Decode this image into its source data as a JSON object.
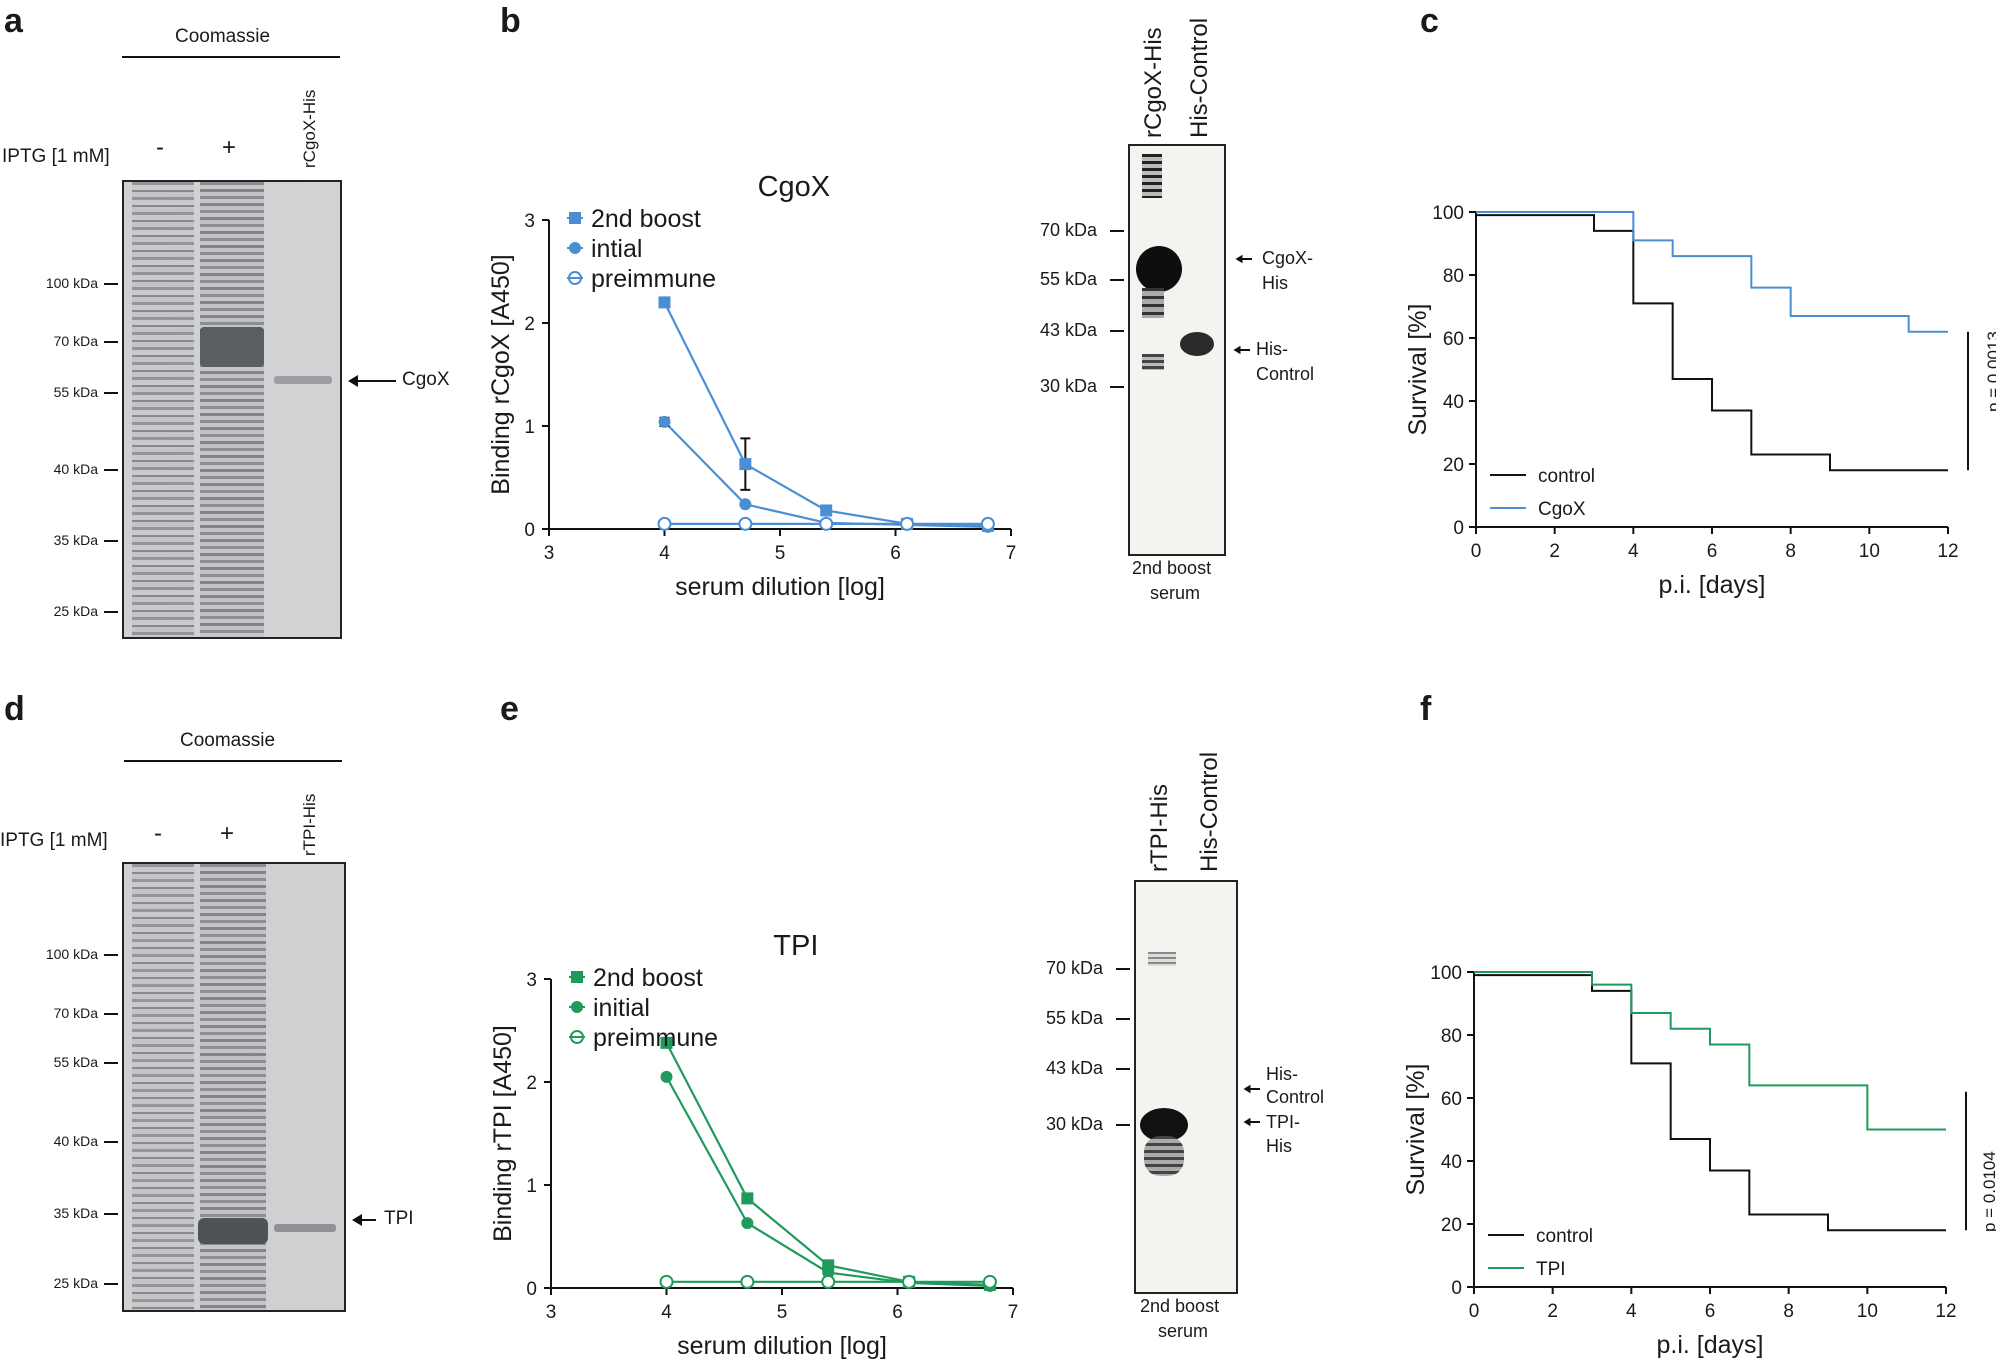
{
  "panels": {
    "a": {
      "letter": "a",
      "header": "Coomassie",
      "iptg_label": "IPTG [1 mM]",
      "minus": "-",
      "plus": "+",
      "lane_label": "rCgoX-His",
      "markers": [
        "100 kDa",
        "70 kDa",
        "55 kDa",
        "40 kDa",
        "35 kDa",
        "25 kDa"
      ],
      "band_label": "CgoX"
    },
    "b": {
      "letter": "b",
      "blot_lanes": [
        "rCgoX-His",
        "His-Control"
      ],
      "blot_markers": [
        "70 kDa",
        "55 kDa",
        "43 kDa",
        "30 kDa"
      ],
      "blot_bands": [
        "CgoX-",
        "His",
        "His-",
        "Control"
      ],
      "blot_serum": [
        "2nd boost",
        "serum"
      ]
    },
    "c": {
      "letter": "c",
      "pvalue": "p = 0.0013"
    },
    "d": {
      "letter": "d",
      "header": "Coomassie",
      "iptg_label": "IPTG [1 mM]",
      "minus": "-",
      "plus": "+",
      "lane_label": "rTPI-His",
      "markers": [
        "100 kDa",
        "70 kDa",
        "55 kDa",
        "40 kDa",
        "35 kDa",
        "25 kDa"
      ],
      "band_label": "TPI"
    },
    "e": {
      "letter": "e",
      "blot_lanes": [
        "rTPI-His",
        "His-Control"
      ],
      "blot_markers": [
        "70 kDa",
        "55 kDa",
        "43 kDa",
        "30 kDa"
      ],
      "blot_bands": [
        "His-",
        "Control",
        "TPI-",
        "His"
      ],
      "blot_serum": [
        "2nd boost",
        "serum"
      ]
    },
    "f": {
      "letter": "f",
      "pvalue": "p = 0.0104"
    }
  },
  "colors": {
    "blue": "#4a8fd4",
    "green": "#1f9a5c",
    "black": "#111111"
  },
  "chart_data": [
    {
      "id": "cgox_elisa",
      "type": "line",
      "title": "CgoX",
      "xlabel": "serum dilution [log]",
      "ylabel": "Binding rCgoX [A450]",
      "xlim": [
        3,
        7
      ],
      "ylim": [
        0,
        3
      ],
      "xticks": [
        3,
        4,
        5,
        6,
        7
      ],
      "yticks": [
        0,
        1,
        2,
        3
      ],
      "legend_position": "top-left",
      "series": [
        {
          "name": "2nd boost",
          "marker": "square",
          "x": [
            4,
            4.7,
            5.4,
            6.1,
            6.8
          ],
          "y": [
            2.2,
            0.63,
            0.18,
            0.05,
            0.03
          ],
          "err": [
            0,
            0.25,
            0,
            0,
            0
          ]
        },
        {
          "name": "intial",
          "marker": "circle",
          "x": [
            4,
            4.7,
            5.4,
            6.1,
            6.8
          ],
          "y": [
            1.04,
            0.24,
            0.06,
            0.04,
            0.02
          ],
          "err": [
            0.04,
            0,
            0,
            0,
            0
          ]
        },
        {
          "name": "preimmune",
          "marker": "open-circle",
          "x": [
            4,
            4.7,
            5.4,
            6.1,
            6.8
          ],
          "y": [
            0.05,
            0.05,
            0.05,
            0.05,
            0.05
          ],
          "err": [
            0,
            0,
            0,
            0,
            0
          ]
        }
      ]
    },
    {
      "id": "cgox_survival",
      "type": "line",
      "xlabel": "p.i. [days]",
      "ylabel": "Survival [%]",
      "xlim": [
        0,
        12
      ],
      "ylim": [
        0,
        100
      ],
      "xticks": [
        0,
        2,
        4,
        6,
        8,
        10,
        12
      ],
      "yticks": [
        0,
        20,
        40,
        60,
        80,
        100
      ],
      "legend_position": "bottom-left",
      "series": [
        {
          "name": "control",
          "x": [
            0,
            3,
            4,
            5,
            6,
            7,
            9,
            12
          ],
          "y": [
            99,
            94,
            71,
            47,
            37,
            23,
            18,
            18
          ]
        },
        {
          "name": "CgoX",
          "x": [
            0,
            4,
            5,
            7,
            8,
            11,
            12
          ],
          "y": [
            100,
            91,
            86,
            76,
            67,
            62,
            62
          ]
        }
      ]
    },
    {
      "id": "tpi_elisa",
      "type": "line",
      "title": "TPI",
      "xlabel": "serum dilution [log]",
      "ylabel": "Binding rTPI [A450]",
      "xlim": [
        3,
        7
      ],
      "ylim": [
        0,
        3
      ],
      "xticks": [
        3,
        4,
        5,
        6,
        7
      ],
      "yticks": [
        0,
        1,
        2,
        3
      ],
      "legend_position": "top-left",
      "series": [
        {
          "name": "2nd boost",
          "marker": "square",
          "x": [
            4,
            4.7,
            5.4,
            6.1,
            6.8
          ],
          "y": [
            2.38,
            0.87,
            0.22,
            0.06,
            0.03
          ],
          "err": [
            0,
            0,
            0,
            0,
            0
          ]
        },
        {
          "name": "initial",
          "marker": "circle",
          "x": [
            4,
            4.7,
            5.4,
            6.1,
            6.8
          ],
          "y": [
            2.05,
            0.63,
            0.15,
            0.05,
            0.02
          ],
          "err": [
            0,
            0,
            0,
            0,
            0
          ]
        },
        {
          "name": "preimmune",
          "marker": "open-circle",
          "x": [
            4,
            4.7,
            5.4,
            6.1,
            6.8
          ],
          "y": [
            0.06,
            0.06,
            0.06,
            0.06,
            0.06
          ],
          "err": [
            0,
            0,
            0,
            0,
            0
          ]
        }
      ]
    },
    {
      "id": "tpi_survival",
      "type": "line",
      "xlabel": "p.i. [days]",
      "ylabel": "Survival [%]",
      "xlim": [
        0,
        12
      ],
      "ylim": [
        0,
        100
      ],
      "xticks": [
        0,
        2,
        4,
        6,
        8,
        10,
        12
      ],
      "yticks": [
        0,
        20,
        40,
        60,
        80,
        100
      ],
      "legend_position": "bottom-left",
      "series": [
        {
          "name": "control",
          "x": [
            0,
            3,
            4,
            5,
            6,
            7,
            9,
            12
          ],
          "y": [
            99,
            94,
            71,
            47,
            37,
            23,
            18,
            18
          ]
        },
        {
          "name": "TPI",
          "x": [
            0,
            3,
            4,
            5,
            6,
            7,
            10,
            12
          ],
          "y": [
            100,
            96,
            87,
            82,
            77,
            64,
            50,
            50
          ]
        }
      ]
    }
  ]
}
